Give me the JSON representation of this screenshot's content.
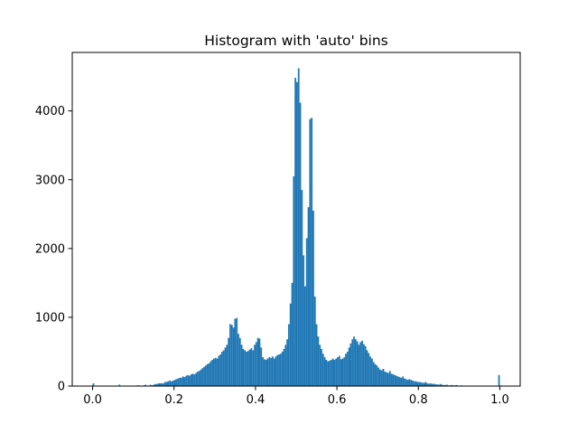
{
  "chart_data": {
    "type": "bar",
    "title": "Histogram with 'auto' bins",
    "xlabel": "",
    "ylabel": "",
    "xlim": [
      -0.05,
      1.05
    ],
    "ylim": [
      0,
      4850
    ],
    "x_ticks": [
      0.0,
      0.2,
      0.4,
      0.6,
      0.8,
      1.0
    ],
    "x_tick_labels": [
      "0.0",
      "0.2",
      "0.4",
      "0.6",
      "0.8",
      "1.0"
    ],
    "y_ticks": [
      0,
      1000,
      2000,
      3000,
      4000
    ],
    "y_tick_labels": [
      "0",
      "1000",
      "2000",
      "3000",
      "4000"
    ],
    "grid": false,
    "bar_color": "#1f77b4",
    "bin_width": 0.004,
    "bins": [
      [
        0.0,
        40
      ],
      [
        0.004,
        0
      ],
      [
        0.008,
        0
      ],
      [
        0.012,
        0
      ],
      [
        0.016,
        0
      ],
      [
        0.02,
        0
      ],
      [
        0.024,
        0
      ],
      [
        0.028,
        0
      ],
      [
        0.032,
        0
      ],
      [
        0.036,
        0
      ],
      [
        0.04,
        0
      ],
      [
        0.044,
        0
      ],
      [
        0.048,
        0
      ],
      [
        0.052,
        0
      ],
      [
        0.056,
        0
      ],
      [
        0.06,
        0
      ],
      [
        0.064,
        20
      ],
      [
        0.068,
        0
      ],
      [
        0.072,
        0
      ],
      [
        0.076,
        0
      ],
      [
        0.08,
        0
      ],
      [
        0.084,
        0
      ],
      [
        0.088,
        0
      ],
      [
        0.092,
        0
      ],
      [
        0.096,
        0
      ],
      [
        0.1,
        0
      ],
      [
        0.104,
        0
      ],
      [
        0.108,
        10
      ],
      [
        0.112,
        10
      ],
      [
        0.116,
        0
      ],
      [
        0.12,
        0
      ],
      [
        0.124,
        10
      ],
      [
        0.128,
        20
      ],
      [
        0.132,
        0
      ],
      [
        0.136,
        0
      ],
      [
        0.14,
        20
      ],
      [
        0.144,
        10
      ],
      [
        0.148,
        20
      ],
      [
        0.152,
        30
      ],
      [
        0.156,
        30
      ],
      [
        0.16,
        40
      ],
      [
        0.164,
        40
      ],
      [
        0.168,
        40
      ],
      [
        0.172,
        40
      ],
      [
        0.176,
        60
      ],
      [
        0.18,
        60
      ],
      [
        0.184,
        70
      ],
      [
        0.188,
        80
      ],
      [
        0.192,
        70
      ],
      [
        0.196,
        80
      ],
      [
        0.2,
        90
      ],
      [
        0.204,
        100
      ],
      [
        0.208,
        110
      ],
      [
        0.212,
        120
      ],
      [
        0.216,
        120
      ],
      [
        0.22,
        140
      ],
      [
        0.224,
        130
      ],
      [
        0.228,
        150
      ],
      [
        0.232,
        160
      ],
      [
        0.236,
        150
      ],
      [
        0.24,
        170
      ],
      [
        0.244,
        180
      ],
      [
        0.248,
        170
      ],
      [
        0.252,
        190
      ],
      [
        0.256,
        210
      ],
      [
        0.26,
        220
      ],
      [
        0.264,
        240
      ],
      [
        0.268,
        260
      ],
      [
        0.272,
        280
      ],
      [
        0.276,
        300
      ],
      [
        0.28,
        320
      ],
      [
        0.284,
        330
      ],
      [
        0.288,
        360
      ],
      [
        0.292,
        380
      ],
      [
        0.296,
        400
      ],
      [
        0.3,
        410
      ],
      [
        0.304,
        400
      ],
      [
        0.308,
        440
      ],
      [
        0.312,
        460
      ],
      [
        0.316,
        500
      ],
      [
        0.32,
        520
      ],
      [
        0.324,
        560
      ],
      [
        0.328,
        600
      ],
      [
        0.332,
        700
      ],
      [
        0.336,
        900
      ],
      [
        0.34,
        890
      ],
      [
        0.344,
        850
      ],
      [
        0.348,
        980
      ],
      [
        0.352,
        990
      ],
      [
        0.356,
        760
      ],
      [
        0.36,
        700
      ],
      [
        0.364,
        600
      ],
      [
        0.368,
        540
      ],
      [
        0.372,
        520
      ],
      [
        0.376,
        500
      ],
      [
        0.38,
        510
      ],
      [
        0.384,
        530
      ],
      [
        0.388,
        550
      ],
      [
        0.392,
        520
      ],
      [
        0.396,
        600
      ],
      [
        0.4,
        640
      ],
      [
        0.404,
        700
      ],
      [
        0.408,
        690
      ],
      [
        0.412,
        560
      ],
      [
        0.416,
        420
      ],
      [
        0.42,
        390
      ],
      [
        0.424,
        380
      ],
      [
        0.428,
        400
      ],
      [
        0.432,
        420
      ],
      [
        0.436,
        410
      ],
      [
        0.44,
        430
      ],
      [
        0.444,
        400
      ],
      [
        0.448,
        430
      ],
      [
        0.452,
        450
      ],
      [
        0.456,
        460
      ],
      [
        0.46,
        470
      ],
      [
        0.464,
        500
      ],
      [
        0.468,
        540
      ],
      [
        0.472,
        600
      ],
      [
        0.476,
        680
      ],
      [
        0.48,
        900
      ],
      [
        0.484,
        1200
      ],
      [
        0.488,
        1500
      ],
      [
        0.492,
        3050
      ],
      [
        0.496,
        4480
      ],
      [
        0.5,
        4420
      ],
      [
        0.504,
        4620
      ],
      [
        0.508,
        4120
      ],
      [
        0.512,
        2850
      ],
      [
        0.516,
        1900
      ],
      [
        0.52,
        1450
      ],
      [
        0.524,
        2150
      ],
      [
        0.528,
        2600
      ],
      [
        0.532,
        3880
      ],
      [
        0.536,
        3900
      ],
      [
        0.54,
        2550
      ],
      [
        0.544,
        1300
      ],
      [
        0.548,
        900
      ],
      [
        0.552,
        720
      ],
      [
        0.556,
        600
      ],
      [
        0.56,
        540
      ],
      [
        0.564,
        470
      ],
      [
        0.568,
        420
      ],
      [
        0.572,
        380
      ],
      [
        0.576,
        360
      ],
      [
        0.58,
        370
      ],
      [
        0.584,
        380
      ],
      [
        0.588,
        400
      ],
      [
        0.592,
        380
      ],
      [
        0.596,
        400
      ],
      [
        0.6,
        420
      ],
      [
        0.604,
        440
      ],
      [
        0.608,
        390
      ],
      [
        0.612,
        400
      ],
      [
        0.616,
        420
      ],
      [
        0.62,
        470
      ],
      [
        0.624,
        500
      ],
      [
        0.628,
        560
      ],
      [
        0.632,
        620
      ],
      [
        0.636,
        680
      ],
      [
        0.64,
        720
      ],
      [
        0.644,
        680
      ],
      [
        0.648,
        650
      ],
      [
        0.652,
        600
      ],
      [
        0.656,
        640
      ],
      [
        0.66,
        660
      ],
      [
        0.664,
        610
      ],
      [
        0.668,
        580
      ],
      [
        0.672,
        520
      ],
      [
        0.676,
        480
      ],
      [
        0.68,
        430
      ],
      [
        0.684,
        400
      ],
      [
        0.688,
        350
      ],
      [
        0.692,
        320
      ],
      [
        0.696,
        300
      ],
      [
        0.7,
        270
      ],
      [
        0.704,
        240
      ],
      [
        0.708,
        230
      ],
      [
        0.712,
        250
      ],
      [
        0.716,
        210
      ],
      [
        0.72,
        200
      ],
      [
        0.724,
        190
      ],
      [
        0.728,
        220
      ],
      [
        0.732,
        180
      ],
      [
        0.736,
        170
      ],
      [
        0.74,
        160
      ],
      [
        0.744,
        150
      ],
      [
        0.748,
        140
      ],
      [
        0.752,
        130
      ],
      [
        0.756,
        120
      ],
      [
        0.76,
        140
      ],
      [
        0.764,
        110
      ],
      [
        0.768,
        100
      ],
      [
        0.772,
        90
      ],
      [
        0.776,
        100
      ],
      [
        0.78,
        90
      ],
      [
        0.784,
        80
      ],
      [
        0.788,
        70
      ],
      [
        0.792,
        70
      ],
      [
        0.796,
        60
      ],
      [
        0.8,
        60
      ],
      [
        0.804,
        55
      ],
      [
        0.808,
        50
      ],
      [
        0.812,
        45
      ],
      [
        0.816,
        60
      ],
      [
        0.82,
        40
      ],
      [
        0.824,
        35
      ],
      [
        0.828,
        40
      ],
      [
        0.832,
        30
      ],
      [
        0.836,
        35
      ],
      [
        0.84,
        25
      ],
      [
        0.844,
        25
      ],
      [
        0.848,
        20
      ],
      [
        0.852,
        30
      ],
      [
        0.856,
        20
      ],
      [
        0.86,
        15
      ],
      [
        0.864,
        15
      ],
      [
        0.868,
        20
      ],
      [
        0.872,
        10
      ],
      [
        0.876,
        10
      ],
      [
        0.88,
        15
      ],
      [
        0.884,
        10
      ],
      [
        0.888,
        10
      ],
      [
        0.892,
        15
      ],
      [
        0.896,
        0
      ],
      [
        0.9,
        5
      ],
      [
        0.904,
        10
      ],
      [
        0.908,
        0
      ],
      [
        0.912,
        5
      ],
      [
        0.916,
        0
      ],
      [
        0.92,
        0
      ],
      [
        0.924,
        5
      ],
      [
        0.928,
        0
      ],
      [
        0.932,
        0
      ],
      [
        0.936,
        0
      ],
      [
        0.94,
        0
      ],
      [
        0.944,
        0
      ],
      [
        0.948,
        0
      ],
      [
        0.952,
        0
      ],
      [
        0.956,
        0
      ],
      [
        0.96,
        0
      ],
      [
        0.964,
        0
      ],
      [
        0.968,
        0
      ],
      [
        0.972,
        0
      ],
      [
        0.976,
        0
      ],
      [
        0.98,
        0
      ],
      [
        0.984,
        0
      ],
      [
        0.988,
        0
      ],
      [
        0.992,
        0
      ],
      [
        0.996,
        160
      ]
    ]
  }
}
